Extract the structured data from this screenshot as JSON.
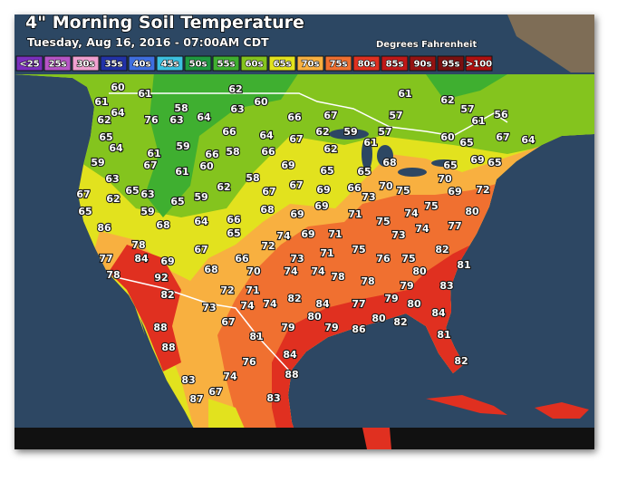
{
  "header": {
    "title": "4\" Morning Soil Temperature",
    "subtitle": "Tuesday, Aug 16, 2016 - 07:00AM CDT",
    "units": "Degrees Fahrenheit"
  },
  "legend": [
    {
      "label": "<25",
      "color": "#7b2fbe"
    },
    {
      "label": "25s",
      "color": "#b755c6"
    },
    {
      "label": "30s",
      "color": "#f0a0d0"
    },
    {
      "label": "35s",
      "color": "#2232a8"
    },
    {
      "label": "40s",
      "color": "#3f6fe0"
    },
    {
      "label": "45s",
      "color": "#3cc0e0"
    },
    {
      "label": "50s",
      "color": "#1f9a40"
    },
    {
      "label": "55s",
      "color": "#3faf30"
    },
    {
      "label": "60s",
      "color": "#84c41e"
    },
    {
      "label": "65s",
      "color": "#e2e21e"
    },
    {
      "label": "70s",
      "color": "#f8b040"
    },
    {
      "label": "75s",
      "color": "#f07030"
    },
    {
      "label": "80s",
      "color": "#e03020"
    },
    {
      "label": "85s",
      "color": "#c01818"
    },
    {
      "label": "90s",
      "color": "#951212"
    },
    {
      "label": "95s",
      "color": "#7a1010"
    },
    {
      "label": ">100",
      "color": "#b01010"
    }
  ],
  "stations": [
    60,
    61,
    62,
    60,
    61,
    64,
    76,
    63,
    58,
    64,
    63,
    66,
    67,
    57,
    61,
    62,
    57,
    61,
    56,
    62,
    65,
    64,
    59,
    66,
    58,
    66,
    64,
    66,
    67,
    62,
    59,
    57,
    62,
    61,
    60,
    65,
    67,
    64,
    61,
    67,
    60,
    61,
    59,
    63,
    65,
    63,
    65,
    59,
    62,
    58,
    69,
    65,
    65,
    68,
    70,
    69,
    65,
    65,
    67,
    67,
    69,
    66,
    73,
    70,
    75,
    69,
    72,
    67,
    62,
    65,
    86,
    59,
    68,
    64,
    66,
    65,
    68,
    69,
    69,
    71,
    75,
    74,
    75,
    80,
    77,
    72,
    74,
    69,
    71,
    71,
    75,
    73,
    74,
    82,
    78,
    77,
    84,
    69,
    67,
    66,
    73,
    76,
    75,
    78,
    92,
    68,
    70,
    74,
    74,
    78,
    78,
    80,
    81,
    82,
    72,
    71,
    79,
    83,
    73,
    74,
    74,
    82,
    84,
    77,
    79,
    80,
    84,
    67,
    79,
    80,
    79,
    86,
    80,
    82,
    88,
    81,
    88,
    84,
    81,
    76,
    88,
    82,
    83,
    74,
    67,
    87,
    83
  ]
}
